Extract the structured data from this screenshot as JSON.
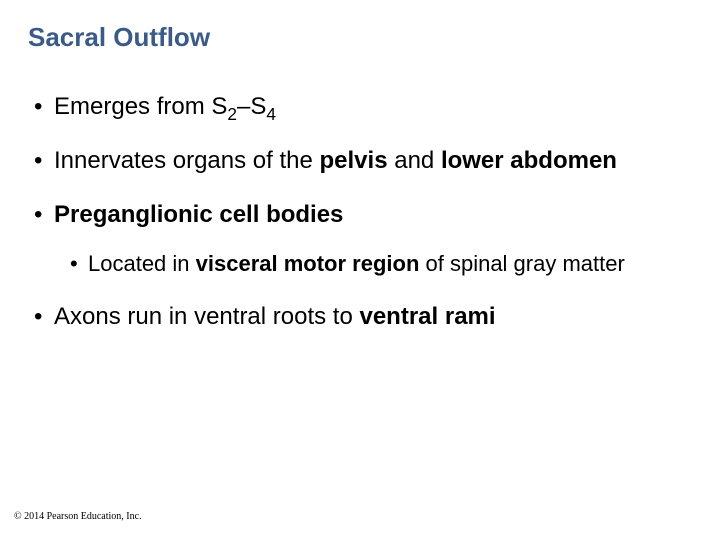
{
  "title_color": "#3a5b88",
  "title": "Sacral Outflow",
  "bullets": [
    {
      "level": 1,
      "segments": [
        {
          "text": "Emerges from S"
        },
        {
          "text": "2",
          "sub": true
        },
        {
          "text": "–S"
        },
        {
          "text": "4",
          "sub": true
        }
      ]
    },
    {
      "level": 1,
      "segments": [
        {
          "text": "Innervates organs of the "
        },
        {
          "text": "pelvis ",
          "bold": true
        },
        {
          "text": "and "
        },
        {
          "text": "lower abdomen",
          "bold": true
        }
      ]
    },
    {
      "level": 1,
      "segments": [
        {
          "text": "Preganglionic cell bodies",
          "bold": true
        }
      ]
    },
    {
      "level": 2,
      "segments": [
        {
          "text": "Located in "
        },
        {
          "text": "visceral motor region ",
          "bold": true
        },
        {
          "text": "of spinal gray matter"
        }
      ]
    },
    {
      "level": 1,
      "segments": [
        {
          "text": "Axons run in ventral roots to "
        },
        {
          "text": "ventral rami",
          "bold": true
        }
      ]
    }
  ],
  "copyright": "© 2014 Pearson Education, Inc."
}
